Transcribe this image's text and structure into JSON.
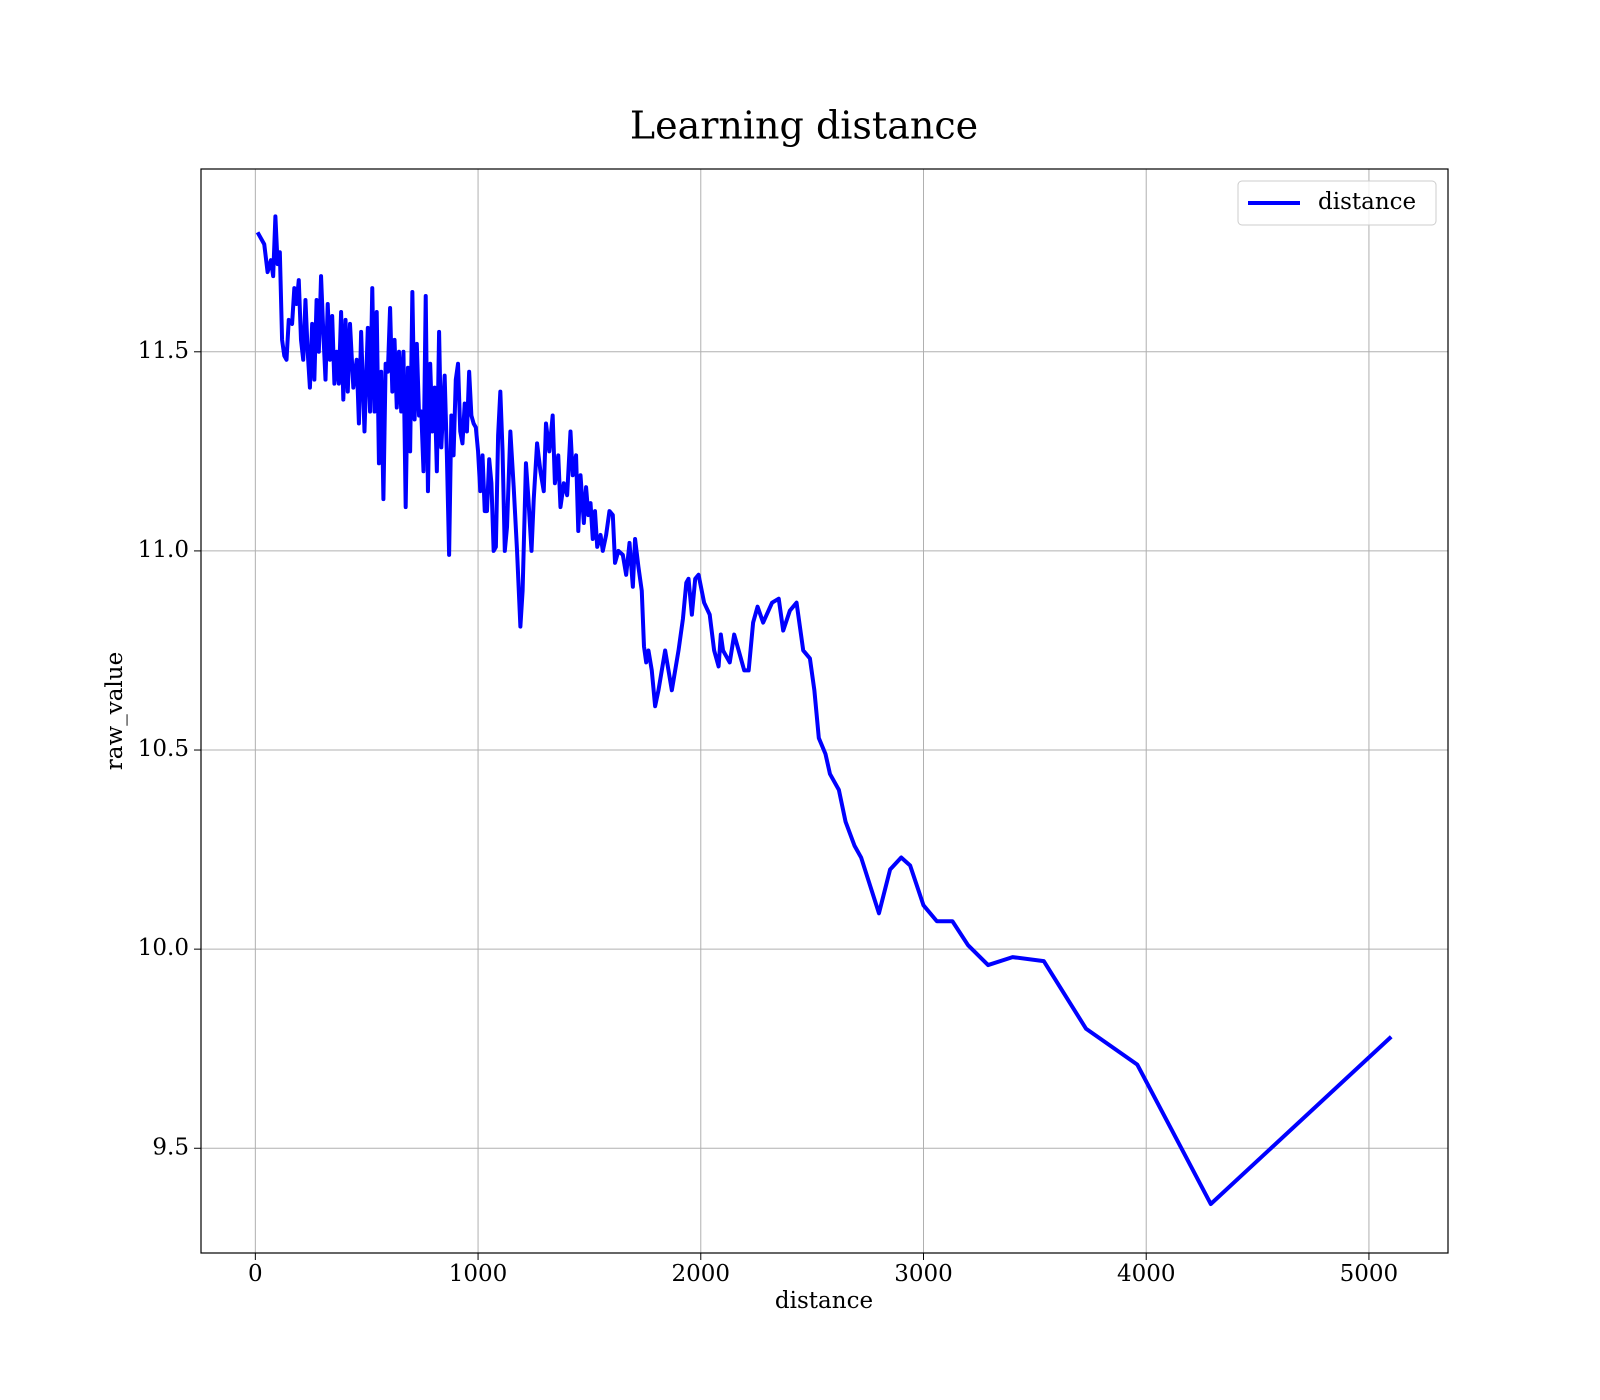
{
  "chart_data": {
    "type": "line",
    "title": "Learning distance",
    "xlabel": "distance",
    "ylabel": "raw_value",
    "x": [
      10,
      40,
      55,
      70,
      80,
      90,
      100,
      110,
      120,
      130,
      140,
      150,
      165,
      175,
      185,
      195,
      205,
      215,
      225,
      235,
      245,
      255,
      265,
      275,
      285,
      295,
      305,
      315,
      325,
      335,
      345,
      355,
      365,
      375,
      385,
      395,
      405,
      415,
      425,
      440,
      455,
      465,
      475,
      490,
      505,
      515,
      525,
      535,
      545,
      555,
      565,
      575,
      585,
      595,
      605,
      615,
      625,
      635,
      645,
      655,
      665,
      675,
      685,
      695,
      705,
      715,
      725,
      735,
      745,
      755,
      765,
      775,
      785,
      795,
      805,
      815,
      825,
      835,
      850,
      860,
      870,
      880,
      890,
      900,
      910,
      920,
      930,
      940,
      950,
      960,
      970,
      980,
      990,
      1000,
      1010,
      1020,
      1030,
      1040,
      1050,
      1060,
      1070,
      1080,
      1090,
      1100,
      1110,
      1120,
      1130,
      1145,
      1160,
      1175,
      1190,
      1200,
      1215,
      1225,
      1240,
      1250,
      1265,
      1280,
      1295,
      1305,
      1320,
      1335,
      1345,
      1360,
      1370,
      1385,
      1400,
      1415,
      1425,
      1440,
      1450,
      1460,
      1475,
      1485,
      1495,
      1505,
      1515,
      1525,
      1535,
      1550,
      1560,
      1575,
      1590,
      1605,
      1615,
      1630,
      1650,
      1665,
      1680,
      1695,
      1705,
      1720,
      1735,
      1745,
      1755,
      1765,
      1780,
      1795,
      1810,
      1825,
      1840,
      1855,
      1870,
      1885,
      1900,
      1920,
      1935,
      1945,
      1960,
      1975,
      1990,
      2015,
      2040,
      2060,
      2080,
      2090,
      2100,
      2130,
      2150,
      2175,
      2195,
      2215,
      2235,
      2255,
      2280,
      2320,
      2350,
      2370,
      2400,
      2430,
      2460,
      2490,
      2510,
      2530,
      2560,
      2580,
      2620,
      2650,
      2690,
      2720,
      2760,
      2800,
      2850,
      2900,
      2940,
      3000,
      3060,
      3130,
      3200,
      3290,
      3400,
      3540,
      3730,
      3960,
      4290,
      5100
    ],
    "series": [
      {
        "name": "distance",
        "color": "#0000ff",
        "values": [
          11.8,
          11.77,
          11.7,
          11.73,
          11.69,
          11.84,
          11.72,
          11.75,
          11.53,
          11.49,
          11.48,
          11.58,
          11.57,
          11.66,
          11.62,
          11.68,
          11.53,
          11.48,
          11.63,
          11.5,
          11.41,
          11.57,
          11.43,
          11.63,
          11.5,
          11.69,
          11.55,
          11.43,
          11.62,
          11.48,
          11.59,
          11.42,
          11.5,
          11.42,
          11.6,
          11.38,
          11.58,
          11.4,
          11.57,
          11.41,
          11.48,
          11.32,
          11.55,
          11.3,
          11.56,
          11.35,
          11.66,
          11.35,
          11.6,
          11.22,
          11.45,
          11.13,
          11.47,
          11.45,
          11.61,
          11.4,
          11.53,
          11.36,
          11.5,
          11.35,
          11.5,
          11.11,
          11.46,
          11.25,
          11.65,
          11.33,
          11.52,
          11.34,
          11.35,
          11.2,
          11.64,
          11.15,
          11.47,
          11.3,
          11.41,
          11.2,
          11.55,
          11.26,
          11.44,
          11.24,
          10.99,
          11.34,
          11.24,
          11.43,
          11.47,
          11.3,
          11.27,
          11.37,
          11.3,
          11.45,
          11.34,
          11.32,
          11.31,
          11.25,
          11.15,
          11.24,
          11.1,
          11.1,
          11.23,
          11.17,
          11.0,
          11.01,
          11.29,
          11.4,
          11.25,
          11.0,
          11.06,
          11.3,
          11.16,
          11.0,
          10.81,
          10.9,
          11.22,
          11.14,
          11.0,
          11.13,
          11.27,
          11.2,
          11.15,
          11.32,
          11.25,
          11.34,
          11.17,
          11.24,
          11.11,
          11.17,
          11.14,
          11.3,
          11.19,
          11.24,
          11.05,
          11.19,
          11.07,
          11.16,
          11.09,
          11.12,
          11.03,
          11.1,
          11.01,
          11.04,
          11.0,
          11.04,
          11.1,
          11.09,
          10.97,
          11.0,
          10.99,
          10.94,
          11.02,
          10.91,
          11.03,
          10.96,
          10.9,
          10.76,
          10.72,
          10.75,
          10.7,
          10.61,
          10.65,
          10.7,
          10.75,
          10.7,
          10.65,
          10.7,
          10.75,
          10.83,
          10.92,
          10.93,
          10.84,
          10.93,
          10.94,
          10.87,
          10.84,
          10.75,
          10.71,
          10.79,
          10.75,
          10.72,
          10.79,
          10.74,
          10.7,
          10.7,
          10.82,
          10.86,
          10.82,
          10.87,
          10.88,
          10.8,
          10.85,
          10.87,
          10.75,
          10.73,
          10.65,
          10.53,
          10.49,
          10.44,
          10.4,
          10.32,
          10.26,
          10.23,
          10.16,
          10.09,
          10.2,
          10.23,
          10.21,
          10.11,
          10.07,
          10.07,
          10.01,
          9.96,
          9.98,
          9.97,
          9.8,
          9.71,
          9.36,
          9.78
        ]
      }
    ],
    "xlim": [
      -244,
      5355
    ],
    "ylim": [
      9.237,
      11.959
    ],
    "xticks": [
      0,
      1000,
      2000,
      3000,
      4000,
      5000
    ],
    "yticks": [
      9.5,
      {
        "value": 10,
        "label": "10.0"
      },
      10.5,
      {
        "value": 11,
        "label": "11.0"
      },
      11.5
    ],
    "grid": true,
    "legend": "upper right"
  }
}
